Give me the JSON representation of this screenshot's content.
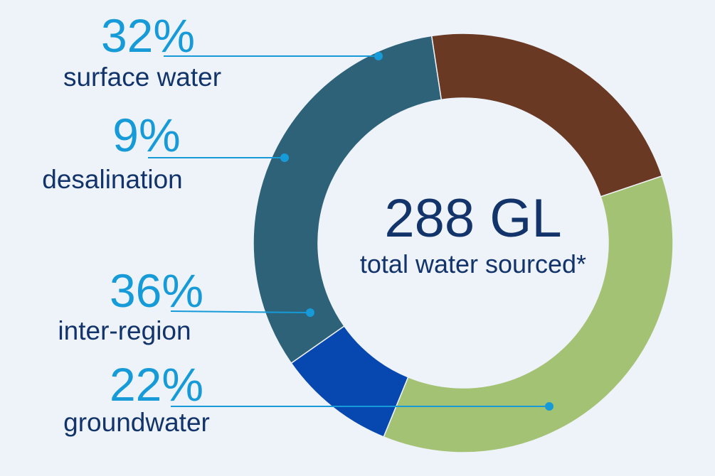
{
  "chart_data": {
    "type": "pie",
    "variant": "donut",
    "center_value": "288 GL",
    "center_caption": "total water sourced*",
    "slices": [
      {
        "label": "surface water",
        "value": 32,
        "display": "32%",
        "color": "#2e6279"
      },
      {
        "label": "groundwater",
        "value": 22,
        "display": "22%",
        "color": "#6a3923"
      },
      {
        "label": "inter-region",
        "value": 36,
        "display": "36%",
        "color": "#a4c274"
      },
      {
        "label": "desalination",
        "value": 9,
        "display": "9%",
        "color": "#0748b0"
      }
    ],
    "colors": {
      "background": "#eef3fa",
      "percent_text": "#169bd8",
      "label_text": "#12346b",
      "leader_line": "#169bd8"
    }
  }
}
